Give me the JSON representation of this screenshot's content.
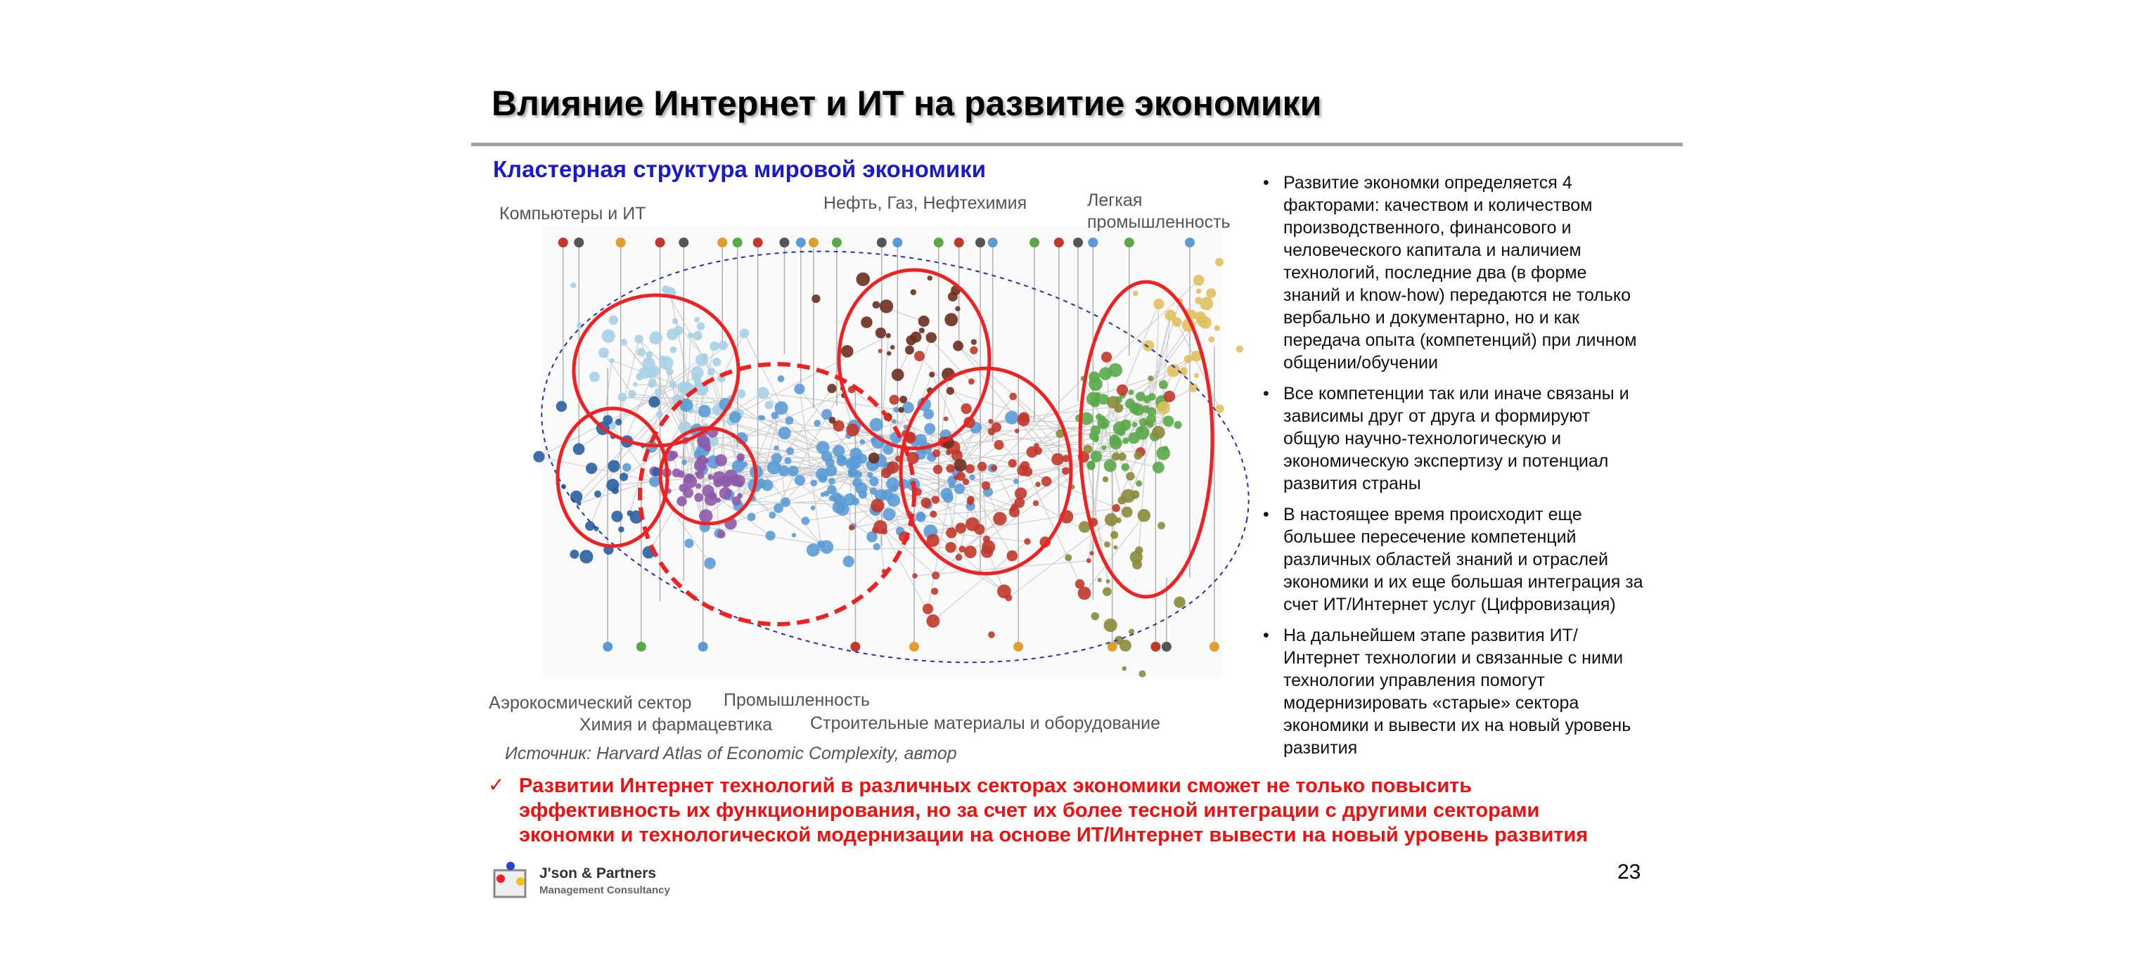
{
  "header": {
    "title": "Влияние Интернет и ИТ на развитие экономики"
  },
  "figure": {
    "subtitle": "Кластерная структура мировой экономики",
    "labels": {
      "computers": "Компьютеры и ИТ",
      "oil": "Нефть, Газ, Нефтехимия",
      "light_industry": [
        "Легкая",
        "промышленность"
      ],
      "aerospace": "Аэрокосмический сектор",
      "industry": "Промышленность",
      "chemistry": "Химия и фармацевтика",
      "construction": "Строительные материалы и оборудование"
    },
    "source": "Источник: Harvard Atlas of Economic Complexity, автор"
  },
  "bullets": [
    [
      "Развитие экономки определяется 4",
      "факторами: качеством и количеством",
      "производственного, финансового и",
      "человеческого капитала и наличием",
      "технологий, последние два (в форме",
      "знаний и know-how) передаются не только",
      "вербально и документарно, но и как",
      "передача опыта (компетенций) при личном",
      "общении/обучении"
    ],
    [
      "Все компетенции так или иначе связаны и",
      "зависимы друг от друга и формируют",
      "общую научно-технологическую и",
      "экономическую экспертизу и потенциал",
      "развития страны"
    ],
    [
      "В настоящее время происходит еще",
      "большее пересечение компетенций",
      "различных областей знаний и отраслей",
      "экономики и их еще большая интеграция за",
      "счет ИТ/Интернет услуг (Цифровизация)"
    ],
    [
      "На дальнейшем этапе развития ИТ/",
      "Интернет технологии и связанные с ними",
      "технологии управления помогут",
      "модернизировать «старые» сектора",
      "экономики и вывести их на новый уровень",
      "развития"
    ]
  ],
  "conclusion": [
    "Развитии Интернет технологий в различных секторах экономики сможет не только повысить",
    "эффективность их функционирования, но за  счет их более тесной интеграции с другими секторами",
    "экономки и технологической модернизации на основе ИТ/Интернет вывести на новый уровень развития"
  ],
  "footer": {
    "logo_name": "J'son & Partners",
    "logo_sub": "Management Consultancy",
    "page": "23"
  }
}
